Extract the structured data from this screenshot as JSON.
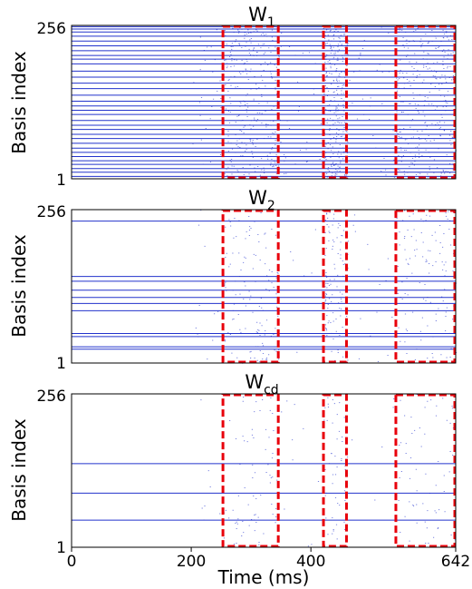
{
  "chart_data": [
    {
      "type": "raster",
      "title": "W",
      "title_subscript": "1",
      "ylabel": "Basis index",
      "y_ticks": [
        "256",
        "1"
      ],
      "ylim": [
        1,
        256
      ],
      "xlim": [
        0,
        642
      ],
      "persistent_indices": [
        1,
        5,
        12,
        18,
        25,
        31,
        38,
        45,
        52,
        60,
        68,
        75,
        83,
        90,
        98,
        108,
        115,
        122,
        130,
        140,
        151,
        160,
        170,
        180,
        192,
        200,
        206,
        214,
        222,
        230,
        238,
        245,
        250,
        254
      ],
      "highlight_windows": [
        [
          253,
          347
        ],
        [
          421,
          461
        ],
        [
          542,
          642
        ]
      ],
      "dot_density": 0.55,
      "line_color": "#2233cc",
      "box_color": "#e8000b"
    },
    {
      "type": "raster",
      "title": "W",
      "title_subscript": "2",
      "ylabel": "Basis index",
      "y_ticks": [
        "256",
        "1"
      ],
      "ylim": [
        1,
        256
      ],
      "xlim": [
        0,
        642
      ],
      "persistent_indices": [
        24,
        28,
        45,
        50,
        88,
        100,
        110,
        122,
        137,
        145,
        237
      ],
      "highlight_windows": [
        [
          253,
          347
        ],
        [
          421,
          461
        ],
        [
          542,
          642
        ]
      ],
      "dot_density": 0.22,
      "line_color": "#2233cc",
      "box_color": "#e8000b"
    },
    {
      "type": "raster",
      "title": "W",
      "title_subscript": "cd",
      "ylabel": "Basis index",
      "y_ticks": [
        "256",
        "1"
      ],
      "ylim": [
        1,
        256
      ],
      "xlim": [
        0,
        642
      ],
      "persistent_indices": [
        46,
        91,
        140
      ],
      "highlight_windows": [
        [
          253,
          347
        ],
        [
          421,
          461
        ],
        [
          542,
          642
        ]
      ],
      "dot_density": 0.12,
      "line_color": "#2233cc",
      "box_color": "#e8000b"
    }
  ],
  "x_axis": {
    "label": "Time (ms)",
    "ticks": [
      {
        "value": 0,
        "label": "0"
      },
      {
        "value": 200,
        "label": "200"
      },
      {
        "value": 400,
        "label": "400"
      },
      {
        "value": 642,
        "label": "642"
      }
    ]
  }
}
